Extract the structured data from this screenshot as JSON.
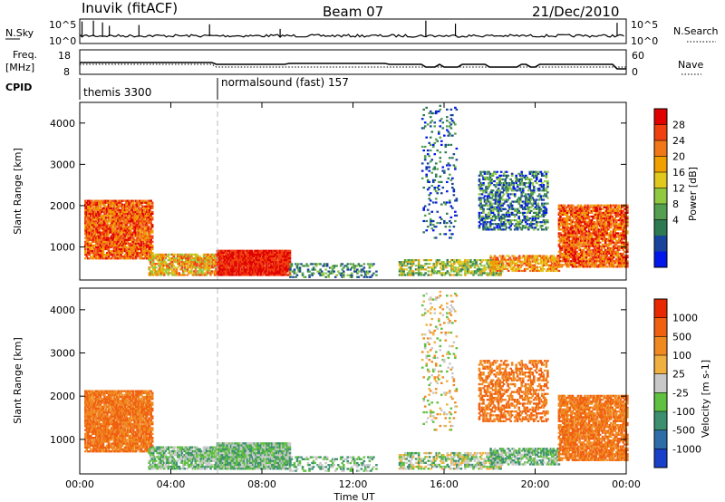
{
  "header": {
    "title": "Inuvik (fitACF)",
    "beam": "Beam 07",
    "date": "21/Dec/2010"
  },
  "noise_panel": {
    "left_label": "N.Sky",
    "left_ticks": [
      "10^5",
      "10^0"
    ],
    "right_label": "N.Search",
    "right_ticks": [
      "10^5",
      "10^0"
    ]
  },
  "freq_panel": {
    "left_label_1": "Freq.",
    "left_label_2": "[MHz]",
    "left_ticks": [
      "18",
      "8"
    ],
    "right_label": "Nave",
    "right_ticks": [
      "60",
      "0"
    ]
  },
  "cpid": {
    "label": "CPID",
    "segments": [
      {
        "text": "themis 3300",
        "start": "00:00"
      },
      {
        "text": "normalsound (fast) 157",
        "start": "06:00"
      }
    ]
  },
  "chart_data": [
    {
      "type": "heatmap",
      "name": "power",
      "ylabel": "Slant Range [km]",
      "ylim": [
        200,
        4500
      ],
      "yticks": [
        1000,
        2000,
        3000,
        4000
      ],
      "xlim": [
        "00:00",
        "24:00"
      ],
      "colorbar": {
        "label": "Power [dB]",
        "ticks": [
          "28",
          "24",
          "20",
          "16",
          "12",
          "8",
          "4"
        ],
        "colors": [
          "#0018e8",
          "#18449c",
          "#2e7a50",
          "#54a050",
          "#90c840",
          "#e0c81c",
          "#f0a000",
          "#f07818",
          "#f04010",
          "#e00000"
        ]
      }
    },
    {
      "type": "heatmap",
      "name": "velocity",
      "ylabel": "Slant Range [km]",
      "ylim": [
        200,
        4500
      ],
      "yticks": [
        1000,
        2000,
        3000,
        4000
      ],
      "xlim": [
        "00:00",
        "24:00"
      ],
      "xlabel": "Time UT",
      "xticks": [
        "00:00",
        "04:00",
        "08:00",
        "12:00",
        "16:00",
        "20:00",
        "00:00"
      ],
      "colorbar": {
        "label": "Velocity [m s-1]",
        "ticks": [
          "1000",
          "500",
          "100",
          "25",
          "-25",
          "-100",
          "-500",
          "-1000"
        ],
        "colors": [
          "#1840c8",
          "#2e6ea8",
          "#3c9070",
          "#60c040",
          "#c8c8c8",
          "#f0b040",
          "#f08a20",
          "#f06010",
          "#e82800"
        ]
      }
    }
  ]
}
